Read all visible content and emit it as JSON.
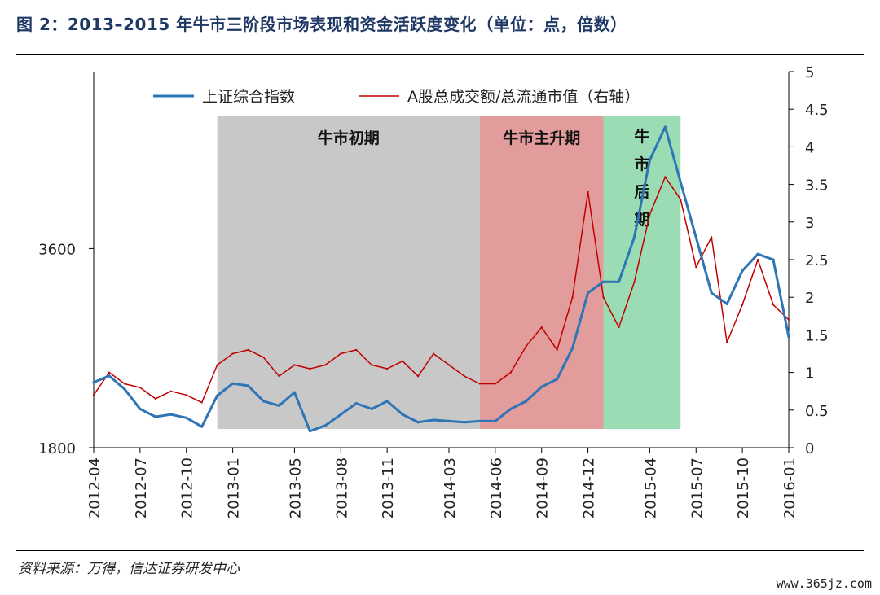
{
  "header": {
    "title": "图 2：2013–2015 年牛市三阶段市场表现和资金活跃度变化（单位：点，倍数）"
  },
  "footer": {
    "source": "资料来源：万得，信达证券研发中心",
    "watermark": "www.365jz.com"
  },
  "chart_data": {
    "type": "line",
    "title": "",
    "xlabel": "",
    "ylabel_left": "",
    "ylabel_right": "",
    "x_ticks": [
      "2012-04",
      "2012-07",
      "2012-10",
      "2013-01",
      "2013-05",
      "2013-08",
      "2013-11",
      "2014-03",
      "2014-06",
      "2014-09",
      "2014-12",
      "2015-04",
      "2015-07",
      "2015-10",
      "2016-01"
    ],
    "ylim_left": [
      1800,
      5200
    ],
    "yticks_left": [
      1800,
      3600
    ],
    "ylim_right": [
      0,
      5
    ],
    "yticks_right": [
      "0",
      "0.5",
      "1",
      "1.5",
      "2",
      "2.5",
      "3",
      "3.5",
      "4",
      "4.5",
      "5"
    ],
    "legend_position": "top",
    "phases": [
      {
        "label": "牛市初期",
        "start": "2012-12",
        "end": "2014-05",
        "color": "#c8c8c8"
      },
      {
        "label": "牛市主升期",
        "start": "2014-05",
        "end": "2015-01",
        "color": "#e39c9c"
      },
      {
        "label": "牛市后期",
        "start": "2015-01",
        "end": "2015-06",
        "color": "#9cdcb4"
      }
    ],
    "series": [
      {
        "name": "上证综合指数",
        "axis": "left",
        "color": "#2e75b6",
        "points": [
          [
            "2012-04",
            2390
          ],
          [
            "2012-05",
            2450
          ],
          [
            "2012-06",
            2330
          ],
          [
            "2012-07",
            2150
          ],
          [
            "2012-08",
            2080
          ],
          [
            "2012-09",
            2100
          ],
          [
            "2012-10",
            2070
          ],
          [
            "2012-11",
            1990
          ],
          [
            "2012-12",
            2270
          ],
          [
            "2013-01",
            2380
          ],
          [
            "2013-02",
            2360
          ],
          [
            "2013-03",
            2220
          ],
          [
            "2013-04",
            2180
          ],
          [
            "2013-05",
            2300
          ],
          [
            "2013-06",
            1950
          ],
          [
            "2013-07",
            2000
          ],
          [
            "2013-08",
            2100
          ],
          [
            "2013-09",
            2200
          ],
          [
            "2013-10",
            2150
          ],
          [
            "2013-11",
            2220
          ],
          [
            "2013-12",
            2100
          ],
          [
            "2014-01",
            2030
          ],
          [
            "2014-02",
            2050
          ],
          [
            "2014-03",
            2040
          ],
          [
            "2014-04",
            2030
          ],
          [
            "2014-05",
            2040
          ],
          [
            "2014-06",
            2040
          ],
          [
            "2014-07",
            2150
          ],
          [
            "2014-08",
            2220
          ],
          [
            "2014-09",
            2350
          ],
          [
            "2014-10",
            2420
          ],
          [
            "2014-11",
            2700
          ],
          [
            "2014-12",
            3200
          ],
          [
            "2015-01",
            3300
          ],
          [
            "2015-02",
            3300
          ],
          [
            "2015-03",
            3700
          ],
          [
            "2015-04",
            4400
          ],
          [
            "2015-05",
            4700
          ],
          [
            "2015-06",
            4200
          ],
          [
            "2015-07",
            3700
          ],
          [
            "2015-08",
            3200
          ],
          [
            "2015-09",
            3100
          ],
          [
            "2015-10",
            3400
          ],
          [
            "2015-11",
            3550
          ],
          [
            "2015-12",
            3500
          ],
          [
            "2016-01",
            2800
          ]
        ]
      },
      {
        "name": "A股总成交额/总流通市值（右轴）",
        "axis": "right",
        "color": "#c00000",
        "points": [
          [
            "2012-04",
            0.7
          ],
          [
            "2012-05",
            1.0
          ],
          [
            "2012-06",
            0.85
          ],
          [
            "2012-07",
            0.8
          ],
          [
            "2012-08",
            0.65
          ],
          [
            "2012-09",
            0.75
          ],
          [
            "2012-10",
            0.7
          ],
          [
            "2012-11",
            0.6
          ],
          [
            "2012-12",
            1.1
          ],
          [
            "2013-01",
            1.25
          ],
          [
            "2013-02",
            1.3
          ],
          [
            "2013-03",
            1.2
          ],
          [
            "2013-04",
            0.95
          ],
          [
            "2013-05",
            1.1
          ],
          [
            "2013-06",
            1.05
          ],
          [
            "2013-07",
            1.1
          ],
          [
            "2013-08",
            1.25
          ],
          [
            "2013-09",
            1.3
          ],
          [
            "2013-10",
            1.1
          ],
          [
            "2013-11",
            1.05
          ],
          [
            "2013-12",
            1.15
          ],
          [
            "2014-01",
            0.95
          ],
          [
            "2014-02",
            1.25
          ],
          [
            "2014-03",
            1.1
          ],
          [
            "2014-04",
            0.95
          ],
          [
            "2014-05",
            0.85
          ],
          [
            "2014-06",
            0.85
          ],
          [
            "2014-07",
            1.0
          ],
          [
            "2014-08",
            1.35
          ],
          [
            "2014-09",
            1.6
          ],
          [
            "2014-10",
            1.3
          ],
          [
            "2014-11",
            2.0
          ],
          [
            "2014-12",
            3.4
          ],
          [
            "2015-01",
            2.0
          ],
          [
            "2015-02",
            1.6
          ],
          [
            "2015-03",
            2.2
          ],
          [
            "2015-04",
            3.1
          ],
          [
            "2015-05",
            3.6
          ],
          [
            "2015-06",
            3.3
          ],
          [
            "2015-07",
            2.4
          ],
          [
            "2015-08",
            2.8
          ],
          [
            "2015-09",
            1.4
          ],
          [
            "2015-10",
            1.9
          ],
          [
            "2015-11",
            2.5
          ],
          [
            "2015-12",
            1.9
          ],
          [
            "2016-01",
            1.7
          ]
        ]
      }
    ]
  }
}
